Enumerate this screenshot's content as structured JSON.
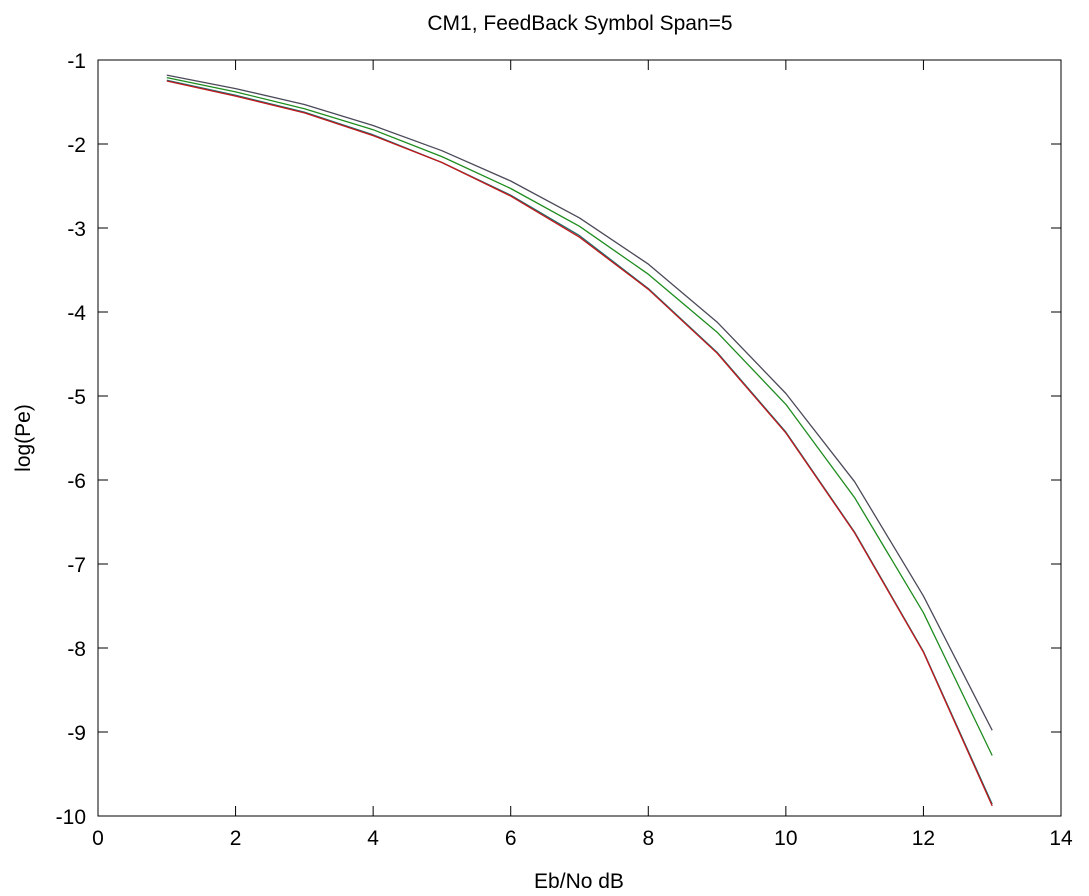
{
  "chart_data": {
    "type": "line",
    "title": "CM1, FeedBack Symbol Span=5",
    "xlabel": "Eb/No dB",
    "ylabel": "log(Pe)",
    "xlim": [
      0,
      14
    ],
    "ylim": [
      -10,
      -1
    ],
    "xticks": [
      "0",
      "2",
      "4",
      "6",
      "8",
      "10",
      "12",
      "14"
    ],
    "yticks": [
      "-1",
      "-2",
      "-3",
      "-4",
      "-5",
      "-6",
      "-7",
      "-8",
      "-9",
      "-10"
    ],
    "grid": false,
    "x": [
      1,
      2,
      3,
      4,
      5,
      6,
      7,
      8,
      9,
      10,
      11,
      12,
      13
    ],
    "series": [
      {
        "color": "#4a4a5a",
        "values": [
          -1.18,
          -1.34,
          -1.53,
          -1.78,
          -2.08,
          -2.44,
          -2.88,
          -3.43,
          -4.12,
          -4.97,
          -6.02,
          -7.38,
          -8.98
        ]
      },
      {
        "color": "#1e8c1e",
        "values": [
          -1.21,
          -1.38,
          -1.58,
          -1.83,
          -2.15,
          -2.53,
          -2.98,
          -3.55,
          -4.24,
          -5.1,
          -6.21,
          -7.58,
          -9.28
        ]
      },
      {
        "color": "#1f6e6e",
        "values": [
          -1.24,
          -1.42,
          -1.62,
          -1.89,
          -2.22,
          -2.61,
          -3.09,
          -3.72,
          -4.48,
          -5.43,
          -6.62,
          -8.04,
          -9.86
        ]
      },
      {
        "color": "#c0181c",
        "values": [
          -1.25,
          -1.43,
          -1.63,
          -1.9,
          -2.22,
          -2.62,
          -3.11,
          -3.73,
          -4.49,
          -5.44,
          -6.63,
          -8.05,
          -9.88
        ]
      }
    ]
  }
}
